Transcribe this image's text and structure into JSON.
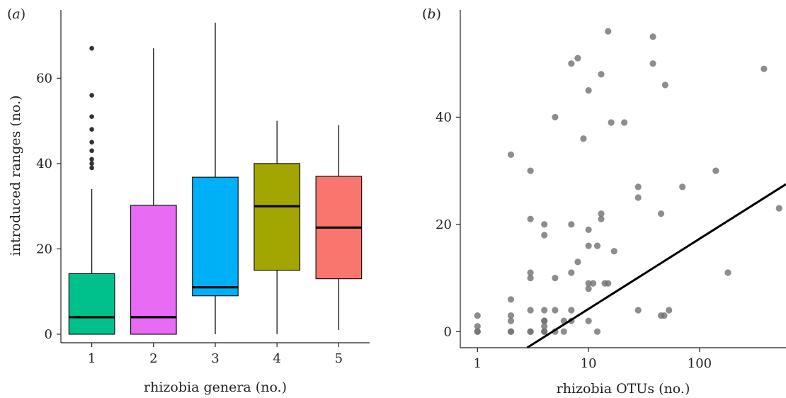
{
  "chart_data": [
    {
      "type": "box",
      "panel_label": "(a)",
      "xlabel": "rhizobia genera (no.)",
      "ylabel": "introduced ranges (no.)",
      "ylim": [
        -2,
        76
      ],
      "yticks": [
        0,
        20,
        40,
        60
      ],
      "categories": [
        "1",
        "2",
        "3",
        "4",
        "5"
      ],
      "boxes": [
        {
          "category": "1",
          "color": "#00C08B",
          "whisker_low": 0,
          "q1": 0,
          "median": 4,
          "q3": 14.2,
          "whisker_high": 34,
          "outliers": [
            39,
            40,
            41,
            43,
            45,
            48,
            51,
            56,
            67
          ]
        },
        {
          "category": "2",
          "color": "#E76BF3",
          "whisker_low": 0,
          "q1": 0,
          "median": 4,
          "q3": 30.2,
          "whisker_high": 67,
          "outliers": []
        },
        {
          "category": "3",
          "color": "#00B0F6",
          "whisker_low": 0,
          "q1": 9,
          "median": 11,
          "q3": 36.8,
          "whisker_high": 73,
          "outliers": []
        },
        {
          "category": "4",
          "color": "#A3A500",
          "whisker_low": 0,
          "q1": 15,
          "median": 30,
          "q3": 40,
          "whisker_high": 50,
          "outliers": []
        },
        {
          "category": "5",
          "color": "#F8766D",
          "whisker_low": 1,
          "q1": 13,
          "median": 25,
          "q3": 37,
          "whisker_high": 49,
          "outliers": []
        }
      ],
      "grid": false
    },
    {
      "type": "scatter",
      "panel_label": "(b)",
      "xlabel": "rhizobia OTUs (no.)",
      "ylabel": "",
      "xscale": "log",
      "xlim": [
        0.7,
        600
      ],
      "ylim": [
        -3,
        60
      ],
      "xticks": [
        1,
        10,
        100
      ],
      "xtick_labels": [
        "1",
        "10",
        "100"
      ],
      "yticks": [
        0,
        20,
        40
      ],
      "point_color": "#707070",
      "points": [
        [
          1,
          0
        ],
        [
          1,
          1
        ],
        [
          1,
          3
        ],
        [
          1,
          0
        ],
        [
          2,
          0
        ],
        [
          2,
          2
        ],
        [
          2,
          3
        ],
        [
          2,
          6
        ],
        [
          2,
          33
        ],
        [
          2,
          0
        ],
        [
          3,
          0
        ],
        [
          3,
          4
        ],
        [
          3,
          10
        ],
        [
          3,
          11
        ],
        [
          3,
          21
        ],
        [
          3,
          30
        ],
        [
          3,
          0
        ],
        [
          4,
          0
        ],
        [
          4,
          1
        ],
        [
          4,
          2
        ],
        [
          4,
          4
        ],
        [
          4,
          18
        ],
        [
          4,
          20
        ],
        [
          4,
          0
        ],
        [
          4,
          2
        ],
        [
          5,
          0
        ],
        [
          5,
          4
        ],
        [
          5,
          10
        ],
        [
          5,
          40
        ],
        [
          6,
          0
        ],
        [
          6,
          2
        ],
        [
          7,
          2
        ],
        [
          7,
          4
        ],
        [
          7,
          11
        ],
        [
          7,
          20
        ],
        [
          7,
          50
        ],
        [
          8,
          13
        ],
        [
          8,
          51
        ],
        [
          9,
          36
        ],
        [
          10,
          2
        ],
        [
          10,
          8
        ],
        [
          10,
          9
        ],
        [
          10,
          16
        ],
        [
          10,
          19
        ],
        [
          10,
          45
        ],
        [
          11,
          9
        ],
        [
          12,
          0
        ],
        [
          12,
          16
        ],
        [
          13,
          21
        ],
        [
          13,
          22
        ],
        [
          13,
          48
        ],
        [
          14,
          9
        ],
        [
          15,
          9
        ],
        [
          15,
          56
        ],
        [
          16,
          39
        ],
        [
          17,
          15
        ],
        [
          21,
          39
        ],
        [
          28,
          4
        ],
        [
          28,
          25
        ],
        [
          28,
          27
        ],
        [
          38,
          50
        ],
        [
          38,
          55
        ],
        [
          45,
          3
        ],
        [
          45,
          22
        ],
        [
          48,
          3
        ],
        [
          49,
          46
        ],
        [
          53,
          4
        ],
        [
          70,
          27
        ],
        [
          140,
          30
        ],
        [
          180,
          11
        ],
        [
          380,
          49
        ],
        [
          520,
          23
        ]
      ],
      "fit_line": {
        "x": [
          2.8,
          600
        ],
        "y": [
          -3,
          27.5
        ]
      },
      "grid": false
    }
  ]
}
